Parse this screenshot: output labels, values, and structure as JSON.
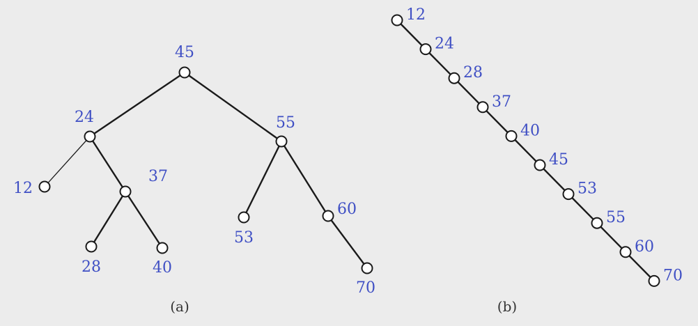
{
  "colors": {
    "background": "#ececec",
    "label": "#3f4fc4",
    "line": "#1a1a1a",
    "caption": "#333333"
  },
  "diagram_a": {
    "caption": "(a)",
    "nodes": [
      "45",
      "24",
      "55",
      "12",
      "37",
      "28",
      "40",
      "53",
      "60",
      "70"
    ],
    "edges": [
      [
        "45",
        "24"
      ],
      [
        "45",
        "55"
      ],
      [
        "24",
        "12"
      ],
      [
        "24",
        "37"
      ],
      [
        "37",
        "28"
      ],
      [
        "37",
        "40"
      ],
      [
        "55",
        "53"
      ],
      [
        "55",
        "60"
      ],
      [
        "60",
        "70"
      ]
    ]
  },
  "diagram_b": {
    "caption": "(b)",
    "nodes": [
      "12",
      "24",
      "28",
      "37",
      "40",
      "45",
      "53",
      "55",
      "60",
      "70"
    ],
    "edges": [
      [
        "12",
        "24"
      ],
      [
        "24",
        "28"
      ],
      [
        "28",
        "37"
      ],
      [
        "37",
        "40"
      ],
      [
        "40",
        "45"
      ],
      [
        "45",
        "53"
      ],
      [
        "53",
        "55"
      ],
      [
        "55",
        "60"
      ],
      [
        "60",
        "70"
      ]
    ]
  }
}
